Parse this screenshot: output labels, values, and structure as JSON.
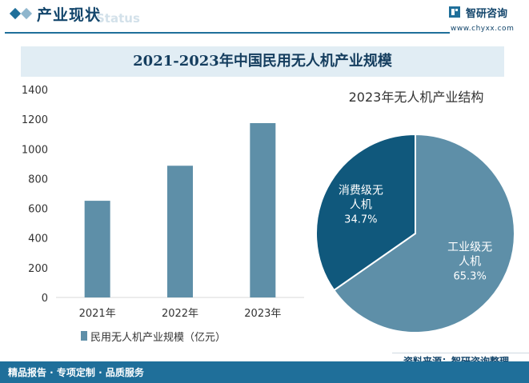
{
  "header": {
    "title": "产业现状",
    "watermark": "Status",
    "brand": "智研咨询",
    "url": "www.chyxx.com"
  },
  "title": "2021-2023年中国民用无人机产业规模",
  "footer": {
    "services": "精品报告 · 专项定制 · 品质服务",
    "source": "资料来源：智研咨询整理"
  },
  "colors": {
    "bar": "#5e8fa8",
    "pie_industrial": "#5e8fa8",
    "pie_consumer": "#10587c",
    "brand": "#1f6f9a"
  },
  "chart_data": [
    {
      "type": "bar",
      "title": "2021-2023年中国民用无人机产业规模",
      "categories": [
        "2021年",
        "2022年",
        "2023年"
      ],
      "values": [
        651,
        887,
        1174
      ],
      "ylim": [
        0,
        1400
      ],
      "yticks": [
        "0",
        "200",
        "400",
        "600",
        "800",
        "1000",
        "1200",
        "1400"
      ],
      "legend": "民用无人机产业规模（亿元）"
    },
    {
      "type": "pie",
      "title": "2023年无人机产业结构",
      "slices": [
        {
          "label_line1": "工业级无",
          "label_line2": "人机",
          "value": 65.3,
          "pct": "65.3%",
          "color": "#5e8fa8"
        },
        {
          "label_line1": "消费级无",
          "label_line2": "人机",
          "value": 34.7,
          "pct": "34.7%",
          "color": "#10587c"
        }
      ]
    }
  ]
}
